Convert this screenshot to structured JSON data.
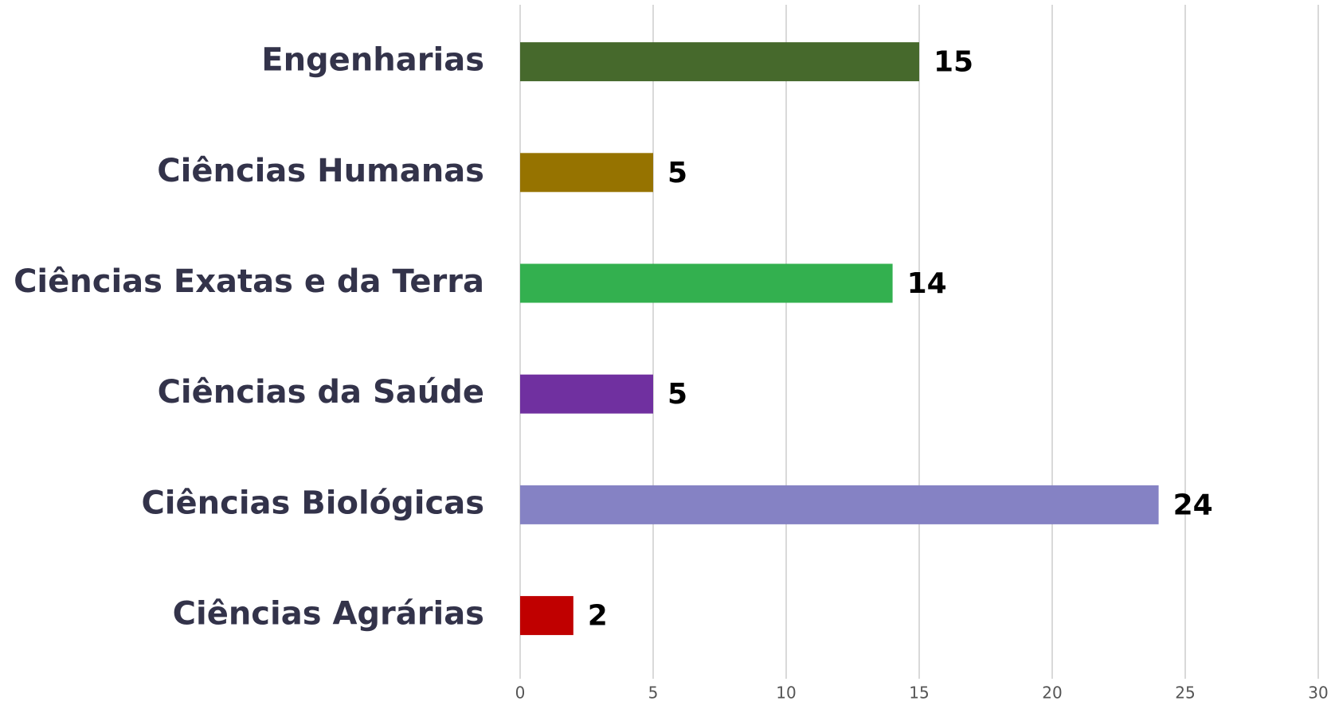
{
  "chart_data": {
    "type": "bar",
    "orientation": "horizontal",
    "categories": [
      "Engenharias",
      "Ciências Humanas",
      "Ciências Exatas e da Terra",
      "Ciências da Saúde",
      "Ciências Biológicas",
      "Ciências Agrárias"
    ],
    "values": [
      15,
      5,
      14,
      5,
      24,
      2
    ],
    "colors": [
      "#46692c",
      "#967300",
      "#33b04f",
      "#7030a0",
      "#8582c4",
      "#c00000"
    ],
    "xlim": [
      0,
      30
    ],
    "xticks": [
      0,
      5,
      10,
      15,
      20,
      25,
      30
    ],
    "grid": true
  }
}
